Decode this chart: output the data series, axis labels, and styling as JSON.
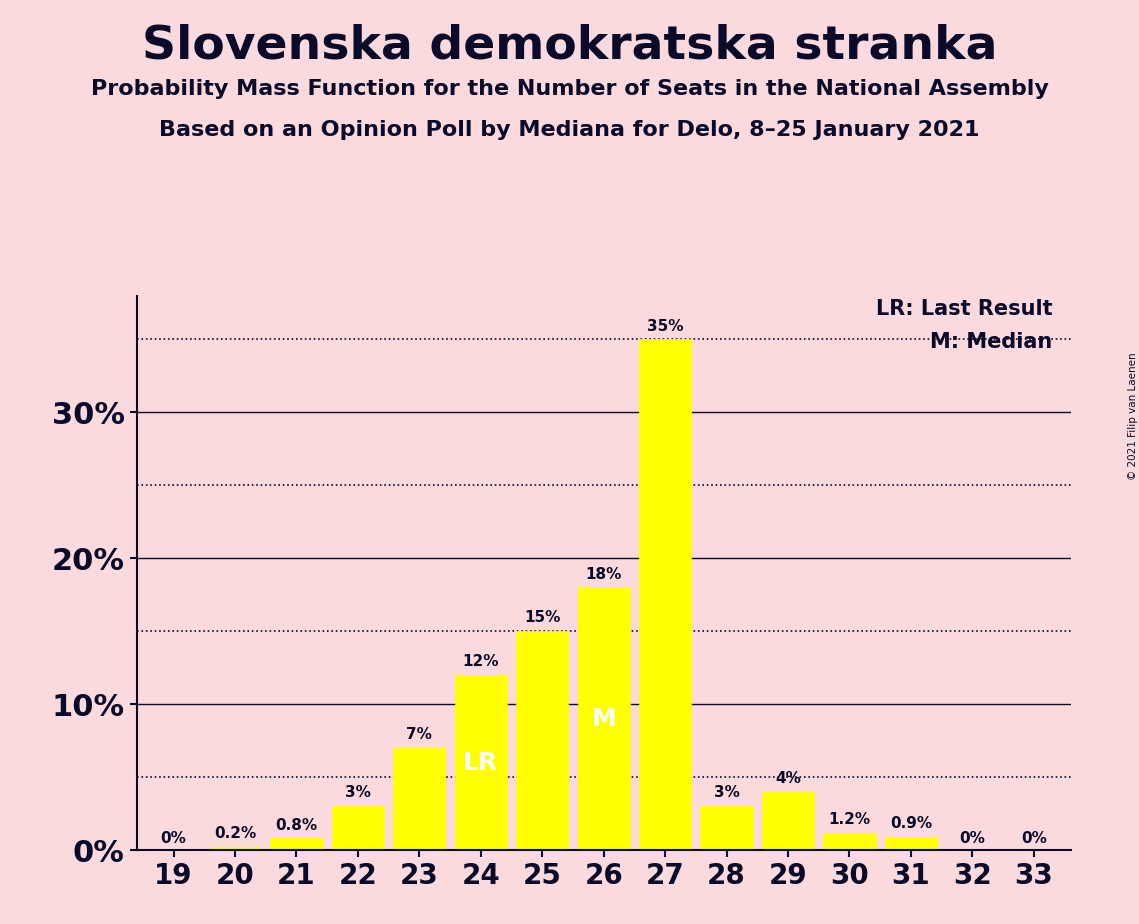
{
  "title": "Slovenska demokratska stranka",
  "subtitle1": "Probability Mass Function for the Number of Seats in the National Assembly",
  "subtitle2": "Based on an Opinion Poll by Mediana for Delo, 8–25 January 2021",
  "copyright": "© 2021 Filip van Laenen",
  "categories": [
    19,
    20,
    21,
    22,
    23,
    24,
    25,
    26,
    27,
    28,
    29,
    30,
    31,
    32,
    33
  ],
  "values": [
    0.0,
    0.2,
    0.8,
    3.0,
    7.0,
    12.0,
    15.0,
    18.0,
    35.0,
    3.0,
    4.0,
    1.2,
    0.9,
    0.0,
    0.0
  ],
  "labels": [
    "0%",
    "0.2%",
    "0.8%",
    "3%",
    "7%",
    "12%",
    "15%",
    "18%",
    "35%",
    "3%",
    "4%",
    "1.2%",
    "0.9%",
    "0%",
    "0%"
  ],
  "bar_color": "#FFFF00",
  "bar_edge_color": "#FFFF00",
  "background_color": "#FADADD",
  "text_color": "#0a0a2a",
  "lr_index": 5,
  "median_index": 7,
  "lr_label": "LR",
  "median_label": "M",
  "legend_lr": "LR: Last Result",
  "legend_m": "M: Median",
  "solid_yticks": [
    0,
    10,
    20,
    30
  ],
  "solid_ytick_labels": [
    "0%",
    "10%",
    "20%",
    "30%"
  ],
  "dotted_yticks": [
    5,
    15,
    25,
    35
  ],
  "dotted_line_color": "#0a0a2a",
  "solid_line_color": "#0a0a2a",
  "ylim": [
    0,
    38
  ]
}
